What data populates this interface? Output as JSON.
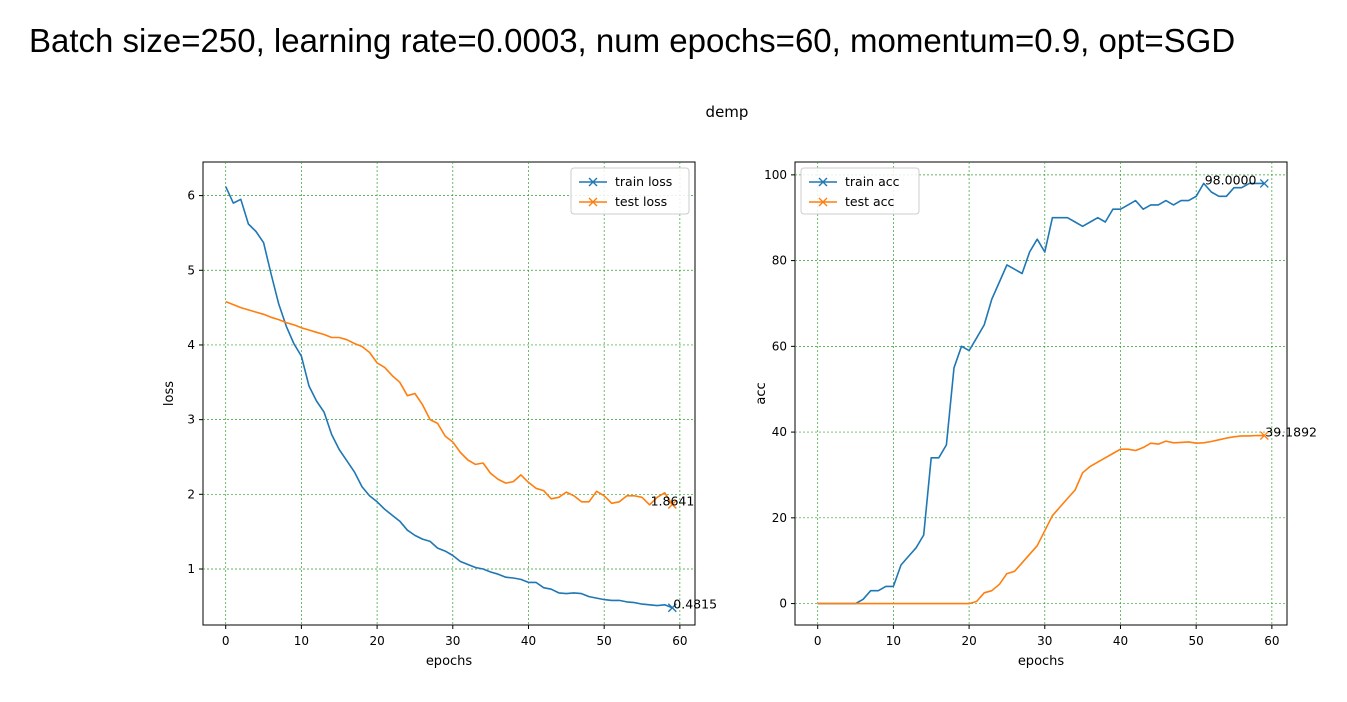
{
  "page": {
    "heading": "Batch size=250, learning rate=0.0003, num epochs=60, momentum=0.9, opt=SGD"
  },
  "figure": {
    "suptitle": "demp"
  },
  "colors": {
    "train": "#1f77b4",
    "test": "#ff7f0e",
    "grid": "#2ca02c"
  },
  "chart_data": [
    {
      "type": "line",
      "title": "",
      "xlabel": "epochs",
      "ylabel": "loss",
      "xlim": [
        -3,
        62
      ],
      "ylim": [
        0.25,
        6.45
      ],
      "xticks": [
        0,
        10,
        20,
        30,
        40,
        50,
        60
      ],
      "yticks": [
        1,
        2,
        3,
        4,
        5,
        6
      ],
      "grid": true,
      "legend": "top-right",
      "x": [
        0,
        1,
        2,
        3,
        4,
        5,
        6,
        7,
        8,
        9,
        10,
        11,
        12,
        13,
        14,
        15,
        16,
        17,
        18,
        19,
        20,
        21,
        22,
        23,
        24,
        25,
        26,
        27,
        28,
        29,
        30,
        31,
        32,
        33,
        34,
        35,
        36,
        37,
        38,
        39,
        40,
        41,
        42,
        43,
        44,
        45,
        46,
        47,
        48,
        49,
        50,
        51,
        52,
        53,
        54,
        55,
        56,
        57,
        58,
        59
      ],
      "series": [
        {
          "name": "train loss",
          "color": "#1f77b4",
          "values": [
            6.12,
            5.9,
            5.95,
            5.62,
            5.52,
            5.37,
            4.95,
            4.55,
            4.25,
            4.02,
            3.85,
            3.45,
            3.25,
            3.1,
            2.8,
            2.6,
            2.45,
            2.3,
            2.1,
            1.98,
            1.9,
            1.8,
            1.72,
            1.64,
            1.52,
            1.45,
            1.4,
            1.37,
            1.28,
            1.24,
            1.18,
            1.1,
            1.06,
            1.02,
            1.0,
            0.96,
            0.93,
            0.89,
            0.88,
            0.86,
            0.82,
            0.82,
            0.75,
            0.73,
            0.68,
            0.67,
            0.68,
            0.67,
            0.63,
            0.61,
            0.59,
            0.58,
            0.58,
            0.56,
            0.55,
            0.53,
            0.52,
            0.51,
            0.52,
            0.4815
          ],
          "end_label": "0.4815"
        },
        {
          "name": "test loss",
          "color": "#ff7f0e",
          "values": [
            4.58,
            4.54,
            4.5,
            4.47,
            4.44,
            4.41,
            4.37,
            4.34,
            4.3,
            4.27,
            4.23,
            4.2,
            4.17,
            4.14,
            4.1,
            4.1,
            4.07,
            4.02,
            3.98,
            3.9,
            3.76,
            3.7,
            3.59,
            3.5,
            3.32,
            3.35,
            3.2,
            3.0,
            2.95,
            2.78,
            2.7,
            2.56,
            2.46,
            2.4,
            2.42,
            2.28,
            2.2,
            2.15,
            2.17,
            2.26,
            2.16,
            2.08,
            2.05,
            1.94,
            1.96,
            2.03,
            1.98,
            1.9,
            1.9,
            2.04,
            1.98,
            1.88,
            1.9,
            1.98,
            1.98,
            1.96,
            1.86,
            1.96,
            2.02,
            1.8641
          ],
          "end_label": "1.8641",
          "end_label_x": 56
        }
      ]
    },
    {
      "type": "line",
      "title": "",
      "xlabel": "epochs",
      "ylabel": "acc",
      "xlim": [
        -3,
        62
      ],
      "ylim": [
        -5,
        103
      ],
      "xticks": [
        0,
        10,
        20,
        30,
        40,
        50,
        60
      ],
      "yticks": [
        0,
        20,
        40,
        60,
        80,
        100
      ],
      "grid": true,
      "legend": "top-left",
      "x": [
        0,
        1,
        2,
        3,
        4,
        5,
        6,
        7,
        8,
        9,
        10,
        11,
        12,
        13,
        14,
        15,
        16,
        17,
        18,
        19,
        20,
        21,
        22,
        23,
        24,
        25,
        26,
        27,
        28,
        29,
        30,
        31,
        32,
        33,
        34,
        35,
        36,
        37,
        38,
        39,
        40,
        41,
        42,
        43,
        44,
        45,
        46,
        47,
        48,
        49,
        50,
        51,
        52,
        53,
        54,
        55,
        56,
        57,
        58,
        59
      ],
      "series": [
        {
          "name": "train acc",
          "color": "#1f77b4",
          "values": [
            0,
            0,
            0,
            0,
            0,
            0,
            1,
            3,
            3,
            4,
            4,
            9,
            11,
            13,
            16,
            34,
            34,
            37,
            55,
            60,
            59,
            62,
            65,
            71,
            75,
            79,
            78,
            77,
            82,
            85,
            82,
            90,
            90,
            90,
            89,
            88,
            89,
            90,
            89,
            92,
            92,
            93,
            94,
            92,
            93,
            93,
            94,
            93,
            94,
            94,
            95,
            98.0,
            96,
            95,
            95,
            97,
            97,
            98,
            98,
            98
          ],
          "end_label": "98.0000",
          "end_label_x": 51
        },
        {
          "name": "test acc",
          "color": "#ff7f0e",
          "values": [
            0,
            0,
            0,
            0,
            0,
            0,
            0,
            0,
            0,
            0,
            0,
            0,
            0,
            0,
            0,
            0,
            0,
            0,
            0,
            0,
            0,
            0.5,
            2.5,
            3,
            4.5,
            7,
            7.5,
            9.5,
            11.5,
            13.5,
            17,
            20.5,
            22.5,
            24.5,
            26.5,
            30.5,
            32,
            33,
            34,
            35,
            36,
            36,
            35.7,
            36.4,
            37.4,
            37.2,
            37.9,
            37.5,
            37.6,
            37.7,
            37.4,
            37.5,
            37.8,
            38.2,
            38.6,
            38.9,
            39.1,
            39.1,
            39.2,
            39.1892
          ],
          "end_label": "39.1892"
        }
      ]
    }
  ]
}
